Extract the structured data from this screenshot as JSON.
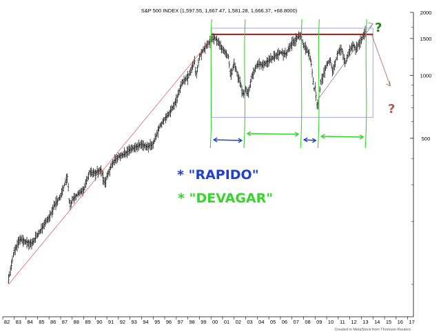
{
  "chart_data": {
    "type": "bar",
    "subtype": "ohlc",
    "title": "S&P 500 INDEX (1,597.55, 1,667.47, 1,581.28, 1,666.37, +68.8000)",
    "y_scale": "log",
    "ylim": [
      70,
      2000
    ],
    "y_ticks": [
      2000,
      1500,
      1000,
      500
    ],
    "y_tick_labels": [
      "2000",
      "1500",
      "1000",
      "500"
    ],
    "x_ticks": [
      "82",
      "83",
      "84",
      "85",
      "86",
      "87",
      "88",
      "89",
      "90",
      "91",
      "92",
      "93",
      "94",
      "95",
      "96",
      "97",
      "98",
      "99",
      "00",
      "01",
      "02",
      "03",
      "04",
      "05",
      "06",
      "07",
      "08",
      "09",
      "10",
      "11",
      "12",
      "13",
      "14",
      "15",
      "16",
      "17"
    ],
    "xlim": [
      1982,
      2017.5
    ],
    "price_series": [
      [
        1982.5,
        105
      ],
      [
        1983.0,
        145
      ],
      [
        1983.5,
        165
      ],
      [
        1984.0,
        160
      ],
      [
        1984.5,
        157
      ],
      [
        1985.0,
        172
      ],
      [
        1985.5,
        190
      ],
      [
        1986.0,
        210
      ],
      [
        1986.5,
        240
      ],
      [
        1987.0,
        265
      ],
      [
        1987.6,
        330
      ],
      [
        1987.8,
        230
      ],
      [
        1988.0,
        255
      ],
      [
        1988.5,
        270
      ],
      [
        1989.0,
        285
      ],
      [
        1989.5,
        345
      ],
      [
        1990.0,
        340
      ],
      [
        1990.5,
        355
      ],
      [
        1990.8,
        300
      ],
      [
        1991.0,
        330
      ],
      [
        1991.5,
        380
      ],
      [
        1992.0,
        410
      ],
      [
        1992.5,
        420
      ],
      [
        1993.0,
        440
      ],
      [
        1993.5,
        455
      ],
      [
        1994.0,
        470
      ],
      [
        1994.5,
        455
      ],
      [
        1995.0,
        470
      ],
      [
        1995.5,
        560
      ],
      [
        1996.0,
        620
      ],
      [
        1996.5,
        670
      ],
      [
        1997.0,
        760
      ],
      [
        1997.5,
        920
      ],
      [
        1998.0,
        980
      ],
      [
        1998.6,
        1180
      ],
      [
        1998.7,
        980
      ],
      [
        1999.0,
        1230
      ],
      [
        1999.5,
        1370
      ],
      [
        2000.0,
        1470
      ],
      [
        2000.3,
        1520
      ],
      [
        2000.7,
        1430
      ],
      [
        2001.0,
        1330
      ],
      [
        2001.5,
        1230
      ],
      [
        2001.7,
        990
      ],
      [
        2002.0,
        1140
      ],
      [
        2002.5,
        940
      ],
      [
        2002.8,
        800
      ],
      [
        2003.0,
        860
      ],
      [
        2003.2,
        810
      ],
      [
        2003.5,
        980
      ],
      [
        2004.0,
        1130
      ],
      [
        2004.5,
        1120
      ],
      [
        2005.0,
        1180
      ],
      [
        2005.5,
        1230
      ],
      [
        2006.0,
        1290
      ],
      [
        2006.5,
        1270
      ],
      [
        2007.0,
        1420
      ],
      [
        2007.5,
        1520
      ],
      [
        2007.8,
        1560
      ],
      [
        2008.0,
        1380
      ],
      [
        2008.5,
        1270
      ],
      [
        2008.7,
        1100
      ],
      [
        2008.9,
        860
      ],
      [
        2009.0,
        880
      ],
      [
        2009.2,
        700
      ],
      [
        2009.5,
        930
      ],
      [
        2010.0,
        1120
      ],
      [
        2010.3,
        1200
      ],
      [
        2010.5,
        1040
      ],
      [
        2011.0,
        1290
      ],
      [
        2011.3,
        1350
      ],
      [
        2011.6,
        1130
      ],
      [
        2012.0,
        1320
      ],
      [
        2012.3,
        1400
      ],
      [
        2012.5,
        1330
      ],
      [
        2013.0,
        1480
      ],
      [
        2013.3,
        1600
      ],
      [
        2013.4,
        1666
      ]
    ],
    "overlays": {
      "red_trendline": [
        [
          1982.5,
          100
        ],
        [
          2000.2,
          1530
        ]
      ],
      "resistance_level": 1570,
      "range_box": {
        "x": [
          2000.0,
          2014.0
        ],
        "y": [
          630,
          1680
        ]
      },
      "rise_trendline": [
        [
          2009.2,
          760
        ],
        [
          2014.0,
          1760
        ]
      ],
      "projected_down": [
        [
          2013.9,
          1560
        ],
        [
          2015.5,
          890
        ]
      ],
      "marker_years": [
        2000.0,
        2002.9,
        2007.8,
        2009.3,
        2013.4
      ]
    },
    "annotations": {
      "question_top": "?",
      "question_bottom": "?",
      "legend_fast": "* \"RAPIDO\"",
      "legend_slow": "* \"DEVAGAR\"",
      "color_fast": "#1f3fd6",
      "color_slow": "#35d62a",
      "color_question_top": "#1a8a1a",
      "color_question_bottom": "#b05a5a",
      "color_resistance": "#a01818",
      "color_trend": "#e05050",
      "color_box": "#9090d8"
    },
    "footer": "Created in MetaStock from Thomson Reuters"
  }
}
